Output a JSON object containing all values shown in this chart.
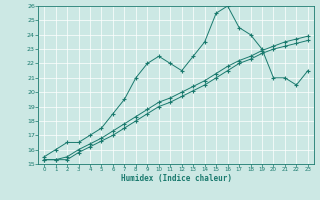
{
  "xlabel": "Humidex (Indice chaleur)",
  "bg_color": "#cce8e4",
  "line_color": "#1a7a6e",
  "xlim": [
    -0.5,
    23.5
  ],
  "ylim": [
    15,
    26
  ],
  "xticks": [
    0,
    1,
    2,
    3,
    4,
    5,
    6,
    7,
    8,
    9,
    10,
    11,
    12,
    13,
    14,
    15,
    16,
    17,
    18,
    19,
    20,
    21,
    22,
    23
  ],
  "yticks": [
    15,
    16,
    17,
    18,
    19,
    20,
    21,
    22,
    23,
    24,
    25,
    26
  ],
  "line1_x": [
    0,
    1,
    2,
    3,
    4,
    5,
    6,
    7,
    8,
    9,
    10,
    11,
    12,
    13,
    14,
    15,
    16,
    17,
    18,
    19,
    20,
    21,
    22,
    23
  ],
  "line1_y": [
    15.5,
    16.0,
    16.5,
    16.5,
    17.0,
    17.5,
    18.5,
    19.5,
    21.0,
    22.0,
    22.5,
    22.0,
    21.5,
    22.5,
    23.5,
    25.5,
    26.0,
    24.5,
    24.0,
    23.0,
    21.0,
    21.0,
    20.5,
    21.5
  ],
  "line3_x": [
    0,
    1,
    2,
    3,
    4,
    5,
    6,
    7,
    8,
    9,
    10,
    11,
    12,
    13,
    14,
    15,
    16,
    17,
    18,
    19,
    20,
    21,
    22,
    23
  ],
  "line3_y": [
    15.3,
    15.3,
    15.3,
    15.8,
    16.2,
    16.6,
    17.0,
    17.5,
    18.0,
    18.5,
    19.0,
    19.3,
    19.7,
    20.1,
    20.5,
    21.0,
    21.5,
    22.0,
    22.3,
    22.7,
    23.0,
    23.2,
    23.4,
    23.6
  ],
  "line4_x": [
    0,
    1,
    2,
    3,
    4,
    5,
    6,
    7,
    8,
    9,
    10,
    11,
    12,
    13,
    14,
    15,
    16,
    17,
    18,
    19,
    20,
    21,
    22,
    23
  ],
  "line4_y": [
    15.3,
    15.3,
    15.5,
    16.0,
    16.4,
    16.8,
    17.3,
    17.8,
    18.3,
    18.8,
    19.3,
    19.6,
    20.0,
    20.4,
    20.8,
    21.3,
    21.8,
    22.2,
    22.5,
    22.9,
    23.2,
    23.5,
    23.7,
    23.9
  ]
}
